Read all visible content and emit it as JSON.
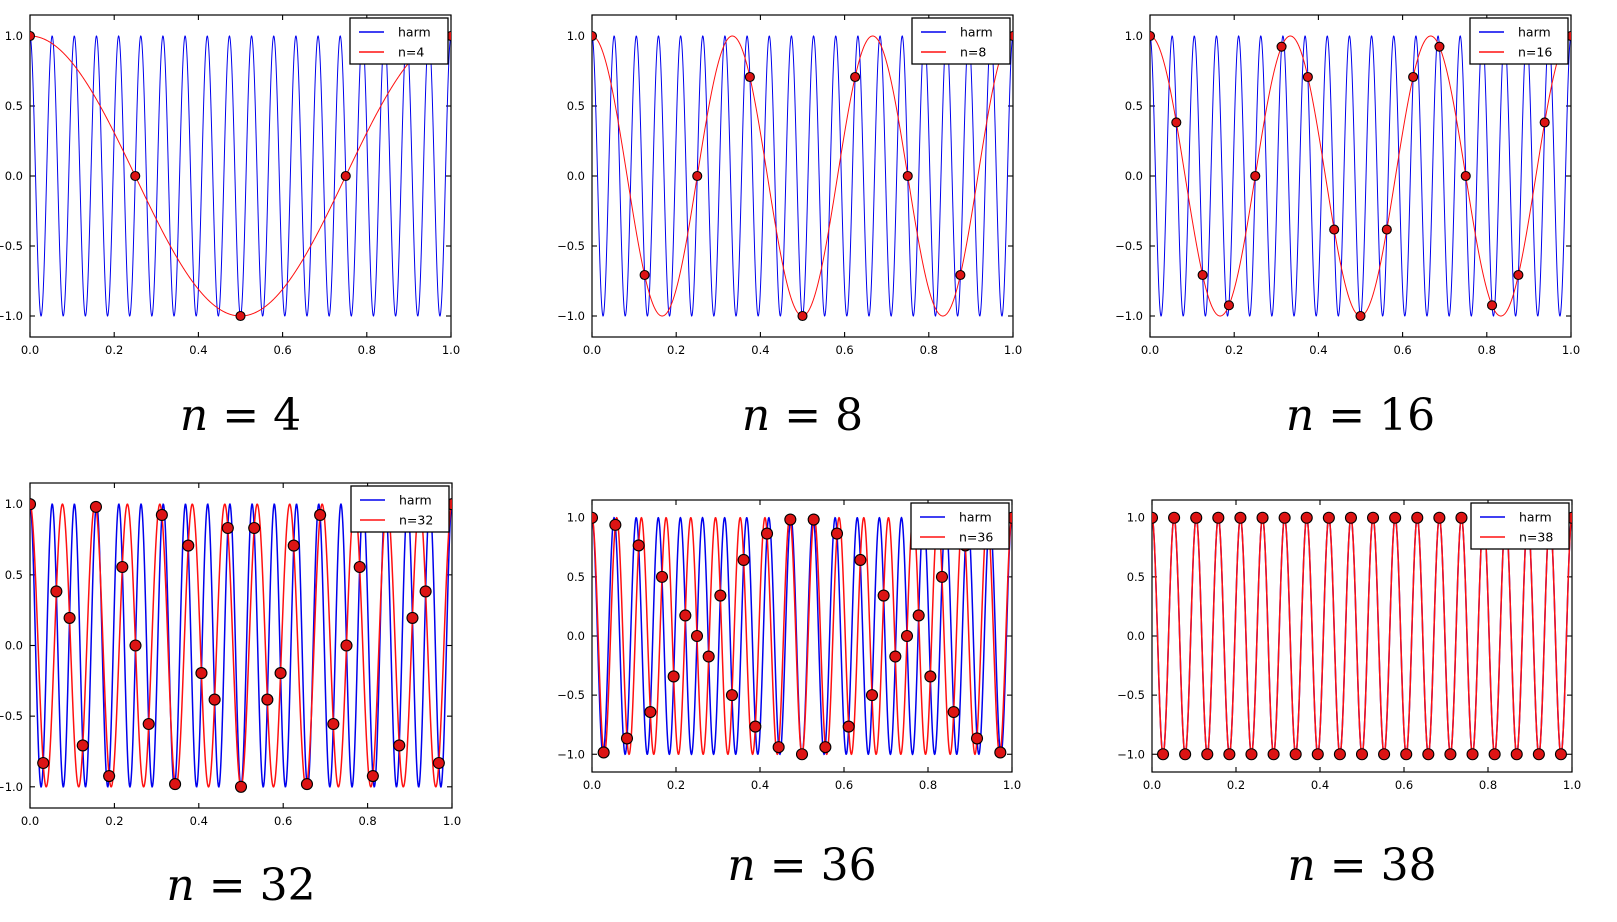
{
  "figure": {
    "colors": {
      "harm_line": "#0000ee",
      "alias_line": "#ff1010",
      "dot_fill": "#dd1414",
      "dot_edge": "#000000",
      "axis": "#000000",
      "tick_label": "#000000",
      "legend_bg": "#ffffff",
      "legend_border": "#000000",
      "caption": "#000000",
      "background": "#ffffff"
    }
  },
  "chart_data": [
    {
      "type": "line",
      "caption": {
        "var": "n",
        "eq": "=",
        "value": "4"
      },
      "legend": {
        "position": "upper right",
        "entries": [
          {
            "label": "harm",
            "color": "#0000ee"
          },
          {
            "label": "n=4",
            "color": "#ff1010"
          }
        ]
      },
      "harm_frequency": 19,
      "alias_frequency": 1,
      "n_samples": 4,
      "xlim": [
        0,
        1
      ],
      "ylim": [
        -1.15,
        1.15
      ],
      "xticks": [
        0,
        0.2,
        0.4,
        0.6,
        0.8,
        1.0
      ],
      "xtick_labels": [
        "0.0",
        "0.2",
        "0.4",
        "0.6",
        "0.8",
        "1.0"
      ],
      "yticks": [
        1.0,
        0.5,
        0.0,
        -0.5,
        -1.0
      ],
      "ytick_labels": [
        "1.0",
        "0.5",
        "0.0",
        "−0.5",
        "−1.0"
      ],
      "grid": false,
      "samples": {
        "x": [
          0,
          0.25,
          0.5,
          0.75,
          1
        ],
        "y": [
          1,
          0,
          -1,
          0,
          1
        ]
      }
    },
    {
      "type": "line",
      "caption": {
        "var": "n",
        "eq": "=",
        "value": "8"
      },
      "legend": {
        "position": "upper right",
        "entries": [
          {
            "label": "harm",
            "color": "#0000ee"
          },
          {
            "label": "n=8",
            "color": "#ff1010"
          }
        ]
      },
      "harm_frequency": 19,
      "alias_frequency": 3,
      "n_samples": 8,
      "xlim": [
        0,
        1
      ],
      "ylim": [
        -1.15,
        1.15
      ],
      "xticks": [
        0,
        0.2,
        0.4,
        0.6,
        0.8,
        1.0
      ],
      "xtick_labels": [
        "0.0",
        "0.2",
        "0.4",
        "0.6",
        "0.8",
        "1.0"
      ],
      "yticks": [
        1.0,
        0.5,
        0.0,
        -0.5,
        -1.0
      ],
      "ytick_labels": [
        "1.0",
        "0.5",
        "0.0",
        "−0.5",
        "−1.0"
      ],
      "grid": false,
      "samples": {
        "x": [
          0,
          0.125,
          0.25,
          0.375,
          0.5,
          0.625,
          0.75,
          0.875,
          1
        ],
        "y": [
          1,
          -0.7071,
          0,
          0.7071,
          -1,
          0.7071,
          0,
          -0.7071,
          1
        ]
      }
    },
    {
      "type": "line",
      "caption": {
        "var": "n",
        "eq": "=",
        "value": "16"
      },
      "legend": {
        "position": "upper right",
        "entries": [
          {
            "label": "harm",
            "color": "#0000ee"
          },
          {
            "label": "n=16",
            "color": "#ff1010"
          }
        ]
      },
      "harm_frequency": 19,
      "alias_frequency": 3,
      "n_samples": 16,
      "xlim": [
        0,
        1
      ],
      "ylim": [
        -1.15,
        1.15
      ],
      "xticks": [
        0,
        0.2,
        0.4,
        0.6,
        0.8,
        1.0
      ],
      "xtick_labels": [
        "0.0",
        "0.2",
        "0.4",
        "0.6",
        "0.8",
        "1.0"
      ],
      "yticks": [
        1.0,
        0.5,
        0.0,
        -0.5,
        -1.0
      ],
      "ytick_labels": [
        "1.0",
        "0.5",
        "0.0",
        "−0.5",
        "−1.0"
      ],
      "grid": false,
      "samples": {
        "x": [
          0,
          0.0625,
          0.125,
          0.1875,
          0.25,
          0.3125,
          0.375,
          0.4375,
          0.5,
          0.5625,
          0.625,
          0.6875,
          0.75,
          0.8125,
          0.875,
          0.9375,
          1
        ],
        "y": [
          1,
          0.3827,
          -0.7071,
          -0.9239,
          0,
          0.9239,
          0.7071,
          -0.3827,
          -1,
          -0.3827,
          0.7071,
          0.9239,
          0,
          -0.9239,
          -0.7071,
          0.3827,
          1
        ]
      }
    },
    {
      "type": "line",
      "caption": {
        "var": "n",
        "eq": "=",
        "value": "32"
      },
      "legend": {
        "position": "upper right",
        "entries": [
          {
            "label": "harm",
            "color": "#0000ee"
          },
          {
            "label": "n=32",
            "color": "#ff1010"
          }
        ]
      },
      "harm_frequency": 19,
      "alias_frequency": 13,
      "n_samples": 32,
      "xlim": [
        0,
        1
      ],
      "ylim": [
        -1.15,
        1.15
      ],
      "xticks": [
        0,
        0.2,
        0.4,
        0.6,
        0.8,
        1.0
      ],
      "xtick_labels": [
        "0.0",
        "0.2",
        "0.4",
        "0.6",
        "0.8",
        "1.0"
      ],
      "yticks": [
        1.0,
        0.5,
        0.0,
        -0.5,
        -1.0
      ],
      "ytick_labels": [
        "1.0",
        "0.5",
        "0.0",
        "−0.5",
        "−1.0"
      ],
      "grid": false,
      "samples": {
        "x": [
          0,
          0.0313,
          0.0625,
          0.0938,
          0.125,
          0.1563,
          0.1875,
          0.2188,
          0.25,
          0.2813,
          0.3125,
          0.3438,
          0.375,
          0.4063,
          0.4375,
          0.4688,
          0.5,
          0.5313,
          0.5625,
          0.5938,
          0.625,
          0.6563,
          0.6875,
          0.7188,
          0.75,
          0.7813,
          0.8125,
          0.8438,
          0.875,
          0.9063,
          0.9375,
          0.9688,
          1
        ],
        "y": [
          1,
          -0.8315,
          0.3827,
          0.1951,
          -0.7071,
          0.9808,
          -0.9239,
          0.5556,
          0,
          -0.5556,
          0.9239,
          -0.9808,
          0.7071,
          -0.1951,
          -0.3827,
          0.8315,
          -1,
          0.8315,
          -0.3827,
          -0.1951,
          0.7071,
          -0.9808,
          0.9239,
          -0.5556,
          0,
          0.5556,
          -0.9239,
          0.9808,
          -0.7071,
          0.1951,
          0.3827,
          -0.8315,
          1
        ]
      }
    },
    {
      "type": "line",
      "caption": {
        "var": "n",
        "eq": "=",
        "value": "36"
      },
      "legend": {
        "position": "upper right",
        "entries": [
          {
            "label": "harm",
            "color": "#0000ee"
          },
          {
            "label": "n=36",
            "color": "#ff1010"
          }
        ]
      },
      "harm_frequency": 19,
      "alias_frequency": 17,
      "n_samples": 36,
      "xlim": [
        0,
        1
      ],
      "ylim": [
        -1.15,
        1.15
      ],
      "xticks": [
        0,
        0.2,
        0.4,
        0.6,
        0.8,
        1.0
      ],
      "xtick_labels": [
        "0.0",
        "0.2",
        "0.4",
        "0.6",
        "0.8",
        "1.0"
      ],
      "yticks": [
        1.0,
        0.5,
        0.0,
        -0.5,
        -1.0
      ],
      "ytick_labels": [
        "1.0",
        "0.5",
        "0.0",
        "−0.5",
        "−1.0"
      ],
      "grid": false,
      "samples": {
        "x": [
          0,
          0.0278,
          0.0556,
          0.0833,
          0.1111,
          0.1389,
          0.1667,
          0.1944,
          0.2222,
          0.25,
          0.2778,
          0.3056,
          0.3333,
          0.3611,
          0.3889,
          0.4167,
          0.4444,
          0.4722,
          0.5,
          0.5278,
          0.5556,
          0.5833,
          0.6111,
          0.6389,
          0.6667,
          0.6944,
          0.7222,
          0.75,
          0.7778,
          0.8056,
          0.8333,
          0.8611,
          0.8889,
          0.9167,
          0.9444,
          0.9722,
          1
        ],
        "y": [
          1,
          -0.9848,
          0.9397,
          -0.866,
          0.766,
          -0.6428,
          0.5,
          -0.342,
          0.1736,
          0,
          -0.1736,
          0.342,
          -0.5,
          0.6428,
          -0.766,
          0.866,
          -0.9397,
          0.9848,
          -1,
          0.9848,
          -0.9397,
          0.866,
          -0.766,
          0.6428,
          -0.5,
          0.342,
          -0.1736,
          0,
          0.1736,
          -0.342,
          0.5,
          -0.6428,
          0.766,
          -0.866,
          0.9397,
          -0.9848,
          1
        ]
      }
    },
    {
      "type": "line",
      "caption": {
        "var": "n",
        "eq": "=",
        "value": "38"
      },
      "legend": {
        "position": "upper right",
        "entries": [
          {
            "label": "harm",
            "color": "#0000ee"
          },
          {
            "label": "n=38",
            "color": "#ff1010"
          }
        ]
      },
      "harm_frequency": 19,
      "alias_frequency": 19,
      "n_samples": 38,
      "xlim": [
        0,
        1
      ],
      "ylim": [
        -1.15,
        1.15
      ],
      "xticks": [
        0,
        0.2,
        0.4,
        0.6,
        0.8,
        1.0
      ],
      "xtick_labels": [
        "0.0",
        "0.2",
        "0.4",
        "0.6",
        "0.8",
        "1.0"
      ],
      "yticks": [
        1.0,
        0.5,
        0.0,
        -0.5,
        -1.0
      ],
      "ytick_labels": [
        "1.0",
        "0.5",
        "0.0",
        "−0.5",
        "−1.0"
      ],
      "grid": false,
      "samples": {
        "x": [
          0,
          0.0263,
          0.0526,
          0.0789,
          0.1053,
          0.1316,
          0.1579,
          0.1842,
          0.2105,
          0.2368,
          0.2632,
          0.2895,
          0.3158,
          0.3421,
          0.3684,
          0.3947,
          0.4211,
          0.4474,
          0.4737,
          0.5,
          0.5263,
          0.5526,
          0.5789,
          0.6053,
          0.6316,
          0.6579,
          0.6842,
          0.7105,
          0.7368,
          0.7632,
          0.7895,
          0.8158,
          0.8421,
          0.8684,
          0.8947,
          0.9211,
          0.9474,
          0.9737,
          1
        ],
        "y": [
          1,
          -1,
          1,
          -1,
          1,
          -1,
          1,
          -1,
          1,
          -1,
          1,
          -1,
          1,
          -1,
          1,
          -1,
          1,
          -1,
          1,
          -1,
          1,
          -1,
          1,
          -1,
          1,
          -1,
          1,
          -1,
          1,
          -1,
          1,
          -1,
          1,
          -1,
          1,
          -1,
          1,
          -1,
          1
        ]
      }
    }
  ]
}
